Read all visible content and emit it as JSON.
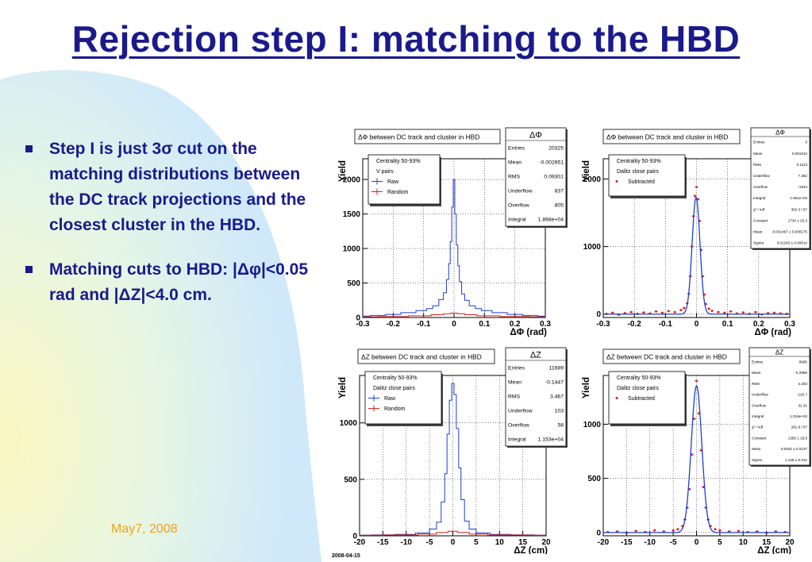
{
  "slide": {
    "title": "Rejection step I: matching to the HBD",
    "footer_date": "May7, 2008",
    "plot_stamp": "2008-04-15",
    "bullets": [
      {
        "text": "Step I is just 3σ cut on the matching distributions between the DC track projections and the closest cluster in the HBD."
      },
      {
        "text": "Matching cuts to HBD: |Δφ|<0.05 rad and |ΔZ|<4.0 cm."
      }
    ]
  },
  "colors": {
    "raw": "#1f3fcf",
    "random": "#d42020",
    "subtracted": "#e01818",
    "fit": "#1f3fcf",
    "text": "#1a1a8c",
    "footer": "#f0a020"
  },
  "chart_data": [
    {
      "id": "p1",
      "type": "line",
      "title": "ΔΦ between DC track and cluster in HBD",
      "xlabel": "ΔΦ (rad)",
      "ylabel": "Yield",
      "xlim": [
        -0.3,
        0.3
      ],
      "ylim": [
        0,
        2300
      ],
      "xticks": [
        -0.3,
        -0.2,
        -0.1,
        0,
        0.1,
        0.2,
        0.3
      ],
      "xtick_labels": [
        "-0.3",
        "-0.2",
        "-0.1",
        "0",
        "0.1",
        "0.2",
        "0.3"
      ],
      "yticks": [
        0,
        500,
        1000,
        1500,
        2000
      ],
      "ytick_labels": [
        "0",
        "500",
        "1000",
        "1500",
        "2000"
      ],
      "grid": true,
      "legend": {
        "header": [
          "Centrality 50-93%",
          "V pairs"
        ],
        "entries": [
          {
            "label": "Raw",
            "series": "raw"
          },
          {
            "label": "Random",
            "series": "random"
          }
        ]
      },
      "stats": {
        "title": "ΔΦ",
        "rows": [
          [
            "Entries",
            "20325"
          ],
          [
            "Mean",
            "-0.002651"
          ],
          [
            "RMS",
            "0.09301"
          ],
          [
            "Underflow",
            "837"
          ],
          [
            "Overflow",
            "805"
          ],
          [
            "Integral",
            "1.868e+04"
          ]
        ]
      },
      "series": [
        {
          "name": "Raw",
          "key": "raw",
          "style": "step",
          "x": [
            -0.3,
            -0.25,
            -0.2,
            -0.15,
            -0.1,
            -0.08,
            -0.06,
            -0.04,
            -0.03,
            -0.02,
            -0.015,
            -0.01,
            -0.005,
            0,
            0.005,
            0.01,
            0.015,
            0.02,
            0.03,
            0.04,
            0.06,
            0.08,
            0.1,
            0.15,
            0.2,
            0.25,
            0.3
          ],
          "y": [
            20,
            30,
            45,
            70,
            100,
            130,
            170,
            260,
            360,
            550,
            780,
            1100,
            1600,
            2000,
            1500,
            1050,
            750,
            520,
            340,
            250,
            170,
            130,
            100,
            70,
            45,
            30,
            20
          ]
        },
        {
          "name": "Random",
          "key": "random",
          "style": "step",
          "x": [
            -0.3,
            -0.2,
            -0.1,
            -0.05,
            -0.02,
            0,
            0.02,
            0.05,
            0.1,
            0.2,
            0.3
          ],
          "y": [
            10,
            15,
            25,
            40,
            55,
            65,
            55,
            40,
            25,
            15,
            10
          ]
        }
      ]
    },
    {
      "id": "p2",
      "type": "scatter",
      "title": "ΔΦ between DC track and cluster in HBD",
      "xlabel": "ΔΦ (rad)",
      "ylabel": "Yield",
      "xlim": [
        -0.3,
        0.3
      ],
      "ylim": [
        -50,
        2300
      ],
      "xticks": [
        -0.3,
        -0.2,
        -0.1,
        0,
        0.1,
        0.2,
        0.3
      ],
      "xtick_labels": [
        "-0.3",
        "-0.2",
        "-0.1",
        "0",
        "0.1",
        "0.2",
        "0.3"
      ],
      "yticks": [
        0,
        1000,
        2000
      ],
      "ytick_labels": [
        "0",
        "1000",
        "2000"
      ],
      "grid": true,
      "legend": {
        "header": [
          "Centrality 50-93%",
          "Dalitz close pairs"
        ],
        "entries": [
          {
            "label": "Subtracted",
            "series": "subtracted"
          }
        ]
      },
      "stats": {
        "title": "ΔΦ",
        "rows": [
          [
            "Entries",
            "0"
          ],
          [
            "Mean",
            "0.001613"
          ],
          [
            "RMS",
            "0.1113"
          ],
          [
            "Underflow",
            "7.362"
          ],
          [
            "Overflow",
            "-1844"
          ],
          [
            "Integral",
            "1.061e+04"
          ],
          [
            "χ² / ndf",
            "302.3 / 97"
          ],
          [
            "Constant",
            "1734 ± 26.3"
          ],
          [
            "Mean",
            "-0.001467 ± 0.000175"
          ],
          [
            "Sigma",
            "0.01263 ± 0.00014"
          ]
        ]
      },
      "fit": {
        "type": "gaussian",
        "constant": 1734,
        "mean": -0.001467,
        "sigma": 0.01263
      },
      "series": [
        {
          "name": "Subtracted",
          "key": "subtracted",
          "style": "markers",
          "x": [
            -0.29,
            -0.27,
            -0.25,
            -0.23,
            -0.21,
            -0.19,
            -0.17,
            -0.15,
            -0.13,
            -0.11,
            -0.09,
            -0.07,
            -0.05,
            -0.04,
            -0.03,
            -0.025,
            -0.02,
            -0.015,
            -0.01,
            -0.005,
            0,
            0.005,
            0.01,
            0.015,
            0.02,
            0.025,
            0.03,
            0.04,
            0.05,
            0.07,
            0.09,
            0.11,
            0.13,
            0.15,
            0.17,
            0.19,
            0.21,
            0.23,
            0.25,
            0.27,
            0.29
          ],
          "y": [
            5,
            20,
            -10,
            15,
            30,
            5,
            25,
            10,
            40,
            20,
            45,
            30,
            60,
            90,
            160,
            300,
            560,
            1000,
            1450,
            1750,
            1880,
            1700,
            1380,
            950,
            560,
            290,
            150,
            80,
            50,
            30,
            20,
            40,
            10,
            25,
            5,
            30,
            -5,
            15,
            20,
            10,
            5
          ]
        }
      ]
    },
    {
      "id": "p3",
      "type": "line",
      "title": "ΔZ between DC track and cluster in HBD",
      "xlabel": "ΔZ (cm)",
      "ylabel": "Yield",
      "xlim": [
        -20,
        20
      ],
      "ylim": [
        0,
        1420
      ],
      "xticks": [
        -20,
        -15,
        -10,
        -5,
        0,
        5,
        10,
        15,
        20
      ],
      "xtick_labels": [
        "-20",
        "-15",
        "-10",
        "-5",
        "0",
        "5",
        "10",
        "15",
        "20"
      ],
      "yticks": [
        0,
        500,
        1000
      ],
      "ytick_labels": [
        "0",
        "500",
        "1000"
      ],
      "grid": true,
      "legend": {
        "header": [
          "Centrality 50-93%",
          "Dalitz close pairs"
        ],
        "entries": [
          {
            "label": "Raw",
            "series": "raw"
          },
          {
            "label": "Random",
            "series": "random"
          }
        ]
      },
      "stats": {
        "title": "ΔZ",
        "rows": [
          [
            "Entries",
            "11689"
          ],
          [
            "Mean",
            "-0.1447"
          ],
          [
            "RMS",
            "3.467"
          ],
          [
            "Underflow",
            "103"
          ],
          [
            "Overflow",
            "58"
          ],
          [
            "Integral",
            "1.153e+04"
          ]
        ]
      },
      "series": [
        {
          "name": "Raw",
          "key": "raw",
          "style": "step",
          "x": [
            -20,
            -15,
            -10,
            -6,
            -4,
            -3,
            -2,
            -1.5,
            -1,
            -0.5,
            0,
            0.5,
            1,
            1.5,
            2,
            3,
            4,
            6,
            10,
            15,
            20
          ],
          "y": [
            5,
            8,
            12,
            25,
            60,
            120,
            300,
            550,
            900,
            1200,
            1350,
            1250,
            950,
            600,
            320,
            130,
            60,
            25,
            12,
            8,
            5
          ]
        },
        {
          "name": "Random",
          "key": "random",
          "style": "step",
          "x": [
            -20,
            -10,
            -5,
            -2,
            0,
            2,
            5,
            10,
            20
          ],
          "y": [
            5,
            8,
            15,
            30,
            40,
            30,
            15,
            8,
            5
          ]
        }
      ]
    },
    {
      "id": "p4",
      "type": "scatter",
      "title": "ΔZ between DC track and cluster in HBD",
      "xlabel": "ΔZ (cm)",
      "ylabel": "Yield",
      "xlim": [
        -20,
        20
      ],
      "ylim": [
        -30,
        1450
      ],
      "xticks": [
        -20,
        -15,
        -10,
        -5,
        0,
        5,
        10,
        15,
        20
      ],
      "xtick_labels": [
        "-20",
        "-15",
        "-10",
        "-5",
        "0",
        "5",
        "10",
        "15",
        "20"
      ],
      "yticks": [
        0,
        500,
        1000
      ],
      "ytick_labels": [
        "0",
        "500",
        "1000"
      ],
      "grid": true,
      "legend": {
        "header": [
          "Centrality 50-93%",
          "Dalitz close pairs"
        ],
        "entries": [
          {
            "label": "Subtracted",
            "series": "subtracted"
          }
        ]
      },
      "stats": {
        "title": "ΔZ",
        "rows": [
          [
            "Entries",
            "8695"
          ],
          [
            "Mean",
            "-0.2889"
          ],
          [
            "RMS",
            "4.293"
          ],
          [
            "Underflow",
            "-120.7"
          ],
          [
            "Overflow",
            "31.31"
          ],
          [
            "Integral",
            "1.016e+04"
          ],
          [
            "χ² / ndf",
            "261.9 / 97"
          ],
          [
            "Constant",
            "1356 ± 19.5"
          ],
          [
            "Mean",
            "0.0042 ± 0.0127"
          ],
          [
            "Sigma",
            "1.128 ± 0.012"
          ]
        ]
      },
      "fit": {
        "type": "gaussian",
        "constant": 1356,
        "mean": 0.0042,
        "sigma": 1.128
      },
      "series": [
        {
          "name": "Subtracted",
          "key": "subtracted",
          "style": "markers",
          "x": [
            -19,
            -17,
            -15,
            -13,
            -11,
            -9,
            -7,
            -5,
            -4,
            -3,
            -2.5,
            -2,
            -1.5,
            -1,
            -0.5,
            0,
            0.5,
            1,
            1.5,
            2,
            2.5,
            3,
            4,
            5,
            7,
            9,
            11,
            13,
            15,
            17,
            19
          ],
          "y": [
            5,
            10,
            -5,
            15,
            5,
            20,
            10,
            20,
            30,
            60,
            120,
            230,
            400,
            720,
            1050,
            1400,
            1100,
            760,
            420,
            230,
            120,
            60,
            30,
            20,
            10,
            15,
            5,
            10,
            -5,
            10,
            5
          ]
        }
      ]
    }
  ]
}
